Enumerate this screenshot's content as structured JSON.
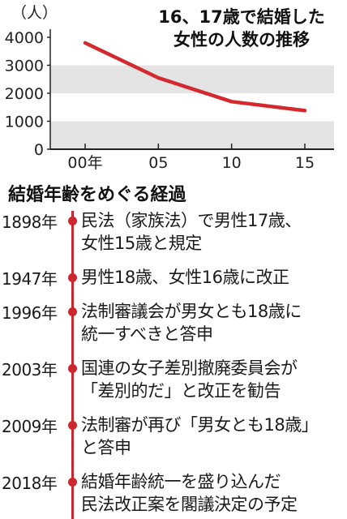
{
  "chart_data": {
    "type": "line",
    "title": "16、17歳で結婚した女性の人数の推移",
    "title_lines": [
      "16、17歳で結婚した",
      "女性の人数の推移"
    ],
    "y_unit_label": "（人）",
    "xlabel": "",
    "ylabel": "",
    "categories": [
      "00年",
      "05",
      "10",
      "15"
    ],
    "x": [
      2000,
      2005,
      2010,
      2015
    ],
    "y_ticks": [
      "4000",
      "3000",
      "2000",
      "1000",
      "0"
    ],
    "ylim": [
      0,
      4000
    ],
    "grid": "alternating horizontal bands",
    "series": [
      {
        "values": [
          3800,
          2550,
          1700,
          1380
        ]
      }
    ],
    "colors": {
      "line": "#d42a2f",
      "band": "#e4e4e4",
      "axis": "#222222"
    }
  },
  "timeline": {
    "heading": "結婚年齢をめぐる経過",
    "line_color": "#c8282e",
    "events": [
      {
        "year": "1898年",
        "text": "民法（家族法）で男性17歳、\n女性15歳と規定"
      },
      {
        "year": "1947年",
        "text": "男性18歳、女性16歳に改正"
      },
      {
        "year": "1996年",
        "text": "法制審議会が男女とも18歳に\n統一すべきと答申"
      },
      {
        "year": "2003年",
        "text": "国連の女子差別撤廃委員会が\n「差別的だ」と改正を勧告"
      },
      {
        "year": "2009年",
        "text": "法制審が再び「男女とも18歳」\nと答申"
      },
      {
        "year": "2018年",
        "text": "結婚年齢統一を盛り込んだ\n民法改正案を閣議決定の予定"
      }
    ]
  }
}
